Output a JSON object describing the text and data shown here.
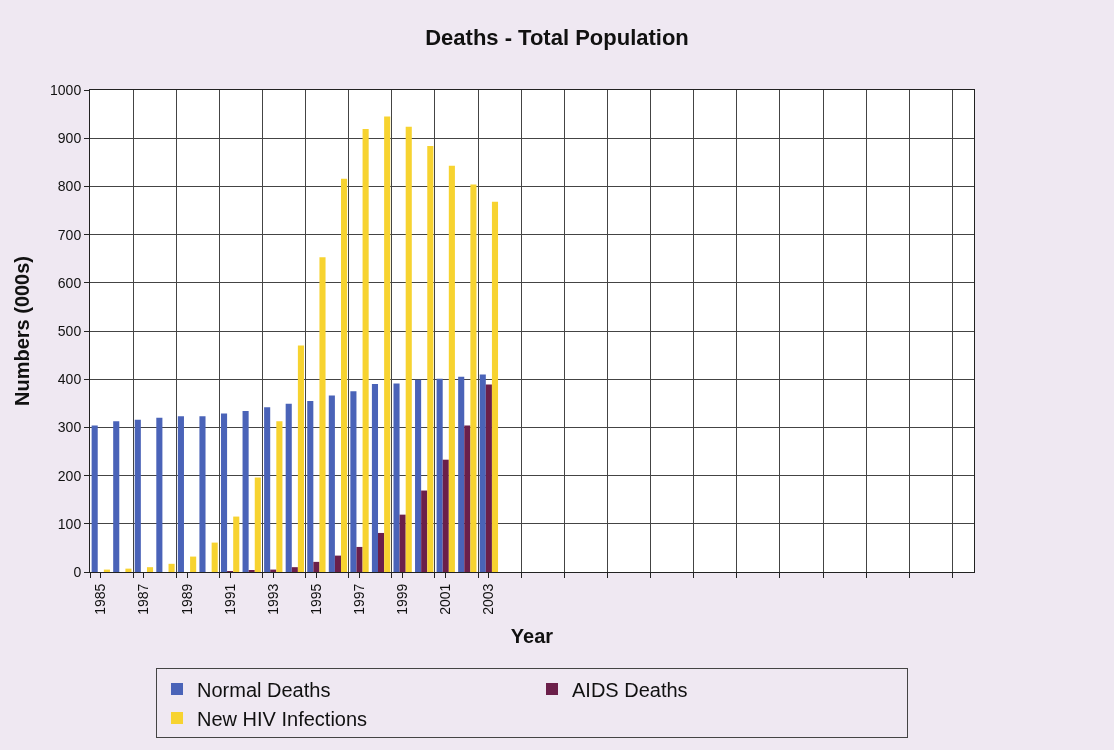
{
  "chart_data": {
    "type": "bar",
    "title": "Deaths - Total Population",
    "xlabel": "Year",
    "ylabel": "Numbers (000s)",
    "categories": [
      "1985",
      null,
      "1987",
      null,
      "1989",
      null,
      "1991",
      null,
      "1993",
      null,
      "1995",
      null,
      "1997",
      null,
      "1999",
      null,
      "2001",
      null,
      "2003",
      null,
      null,
      null,
      null,
      null,
      null,
      null,
      null,
      null,
      null,
      null,
      null,
      null,
      null,
      null,
      null,
      null,
      null,
      null,
      null,
      null,
      null
    ],
    "series": [
      {
        "name": "Normal Deaths",
        "color": "#4a63b8",
        "values": [
          304,
          313,
          316,
          320,
          323,
          323,
          329,
          334,
          342,
          349,
          355,
          366,
          375,
          390,
          391,
          399,
          401,
          405,
          410,
          null,
          null,
          null,
          null,
          null,
          null,
          null,
          null,
          null,
          null,
          null,
          null,
          null,
          null,
          null,
          null,
          null,
          null,
          null,
          null,
          null,
          null
        ]
      },
      {
        "name": "AIDS Deaths",
        "color": "#6b1f4a",
        "values": [
          0,
          0,
          0,
          0,
          0,
          0,
          2,
          3,
          5,
          10,
          21,
          34,
          52,
          81,
          119,
          169,
          233,
          304,
          389,
          null,
          null,
          null,
          null,
          null,
          null,
          null,
          null,
          null,
          null,
          null,
          null,
          null,
          null,
          null,
          null,
          null,
          null,
          null,
          null,
          null,
          null
        ]
      },
      {
        "name": "New HIV Infections",
        "color": "#f7d330",
        "values": [
          5,
          7,
          10,
          17,
          32,
          61,
          115,
          196,
          313,
          470,
          653,
          816,
          919,
          945,
          924,
          884,
          843,
          804,
          768,
          null,
          null,
          null,
          null,
          null,
          null,
          null,
          null,
          null,
          null,
          null,
          null,
          null,
          null,
          null,
          null,
          null,
          null,
          null,
          null,
          null,
          null
        ]
      }
    ],
    "ylim": [
      0,
      1000
    ],
    "yticks": [
      0,
      100,
      200,
      300,
      400,
      500,
      600,
      700,
      800,
      900,
      1000
    ],
    "grid": true,
    "legend": "bottom"
  }
}
